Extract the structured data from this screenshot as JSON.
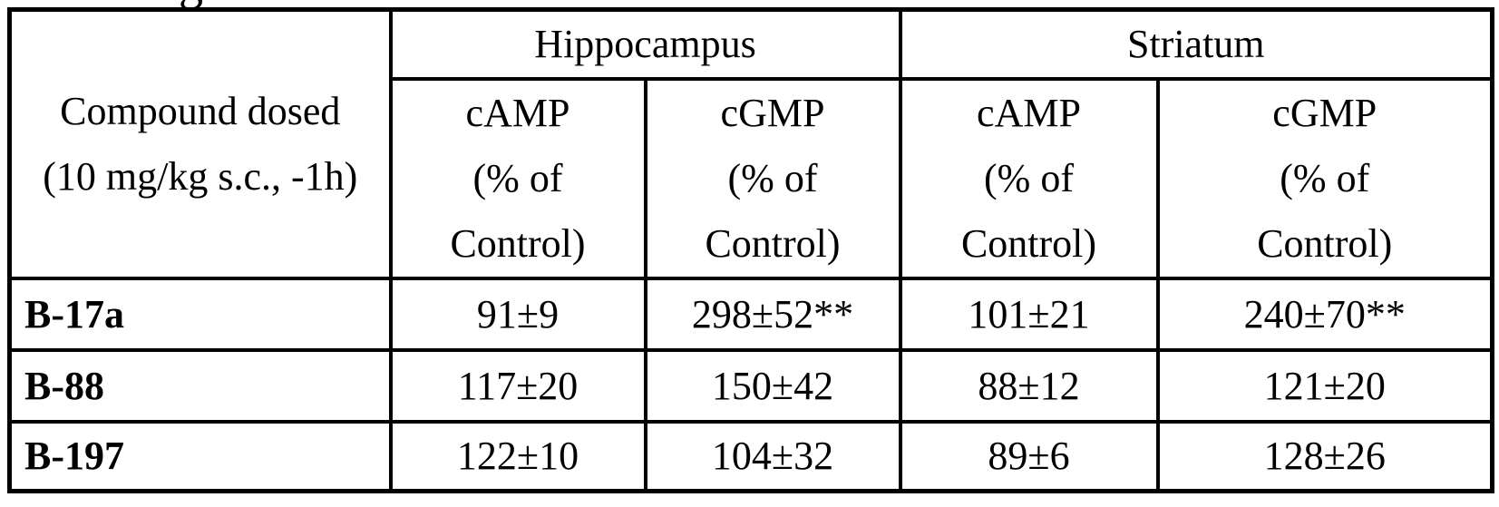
{
  "page": {
    "background_color": "#ffffff",
    "text_color": "#000000",
    "clipped_fragment_text": "g"
  },
  "table": {
    "border_color": "#000000",
    "compound_header": {
      "line1": "Compound dosed",
      "line2": "(10 mg/kg s.c., -1h)"
    },
    "region_headers": [
      {
        "label": "Hippocampus"
      },
      {
        "label": "Striatum"
      }
    ],
    "measure_headers": [
      {
        "line1": "cAMP",
        "line2": "(% of",
        "line3": "Control)"
      },
      {
        "line1": "cGMP",
        "line2": "(% of",
        "line3": "Control)"
      },
      {
        "line1": "cAMP",
        "line2": "(% of",
        "line3": "Control)"
      },
      {
        "line1": "cGMP",
        "line2": "(% of",
        "line3": "Control)"
      }
    ],
    "rows": [
      {
        "compound": "B-17a",
        "values": [
          "91±9",
          "298±52**",
          "101±21",
          "240±70**"
        ]
      },
      {
        "compound": "B-88",
        "values": [
          "117±20",
          "150±42",
          "88±12",
          "121±20"
        ]
      },
      {
        "compound": "B-197",
        "values": [
          "122±10",
          "104±32",
          "89±6",
          "128±26"
        ]
      }
    ]
  }
}
